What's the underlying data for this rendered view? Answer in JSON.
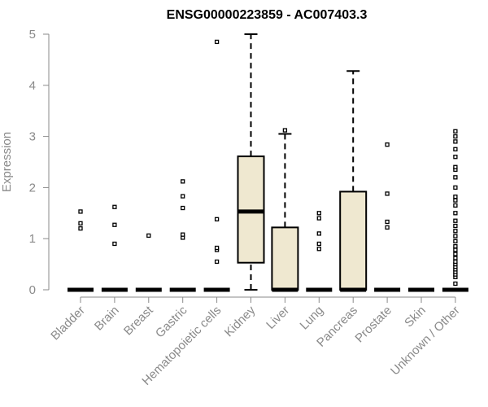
{
  "chart_data": {
    "type": "boxplot",
    "title": "ENSG00000223859 - AC007403.3",
    "xlabel": "",
    "ylabel": "Expression",
    "ylim": [
      0,
      5
    ],
    "yticks": [
      "0",
      "1",
      "2",
      "3",
      "4",
      "5"
    ],
    "box_fill": "#efe8d0",
    "categories": [
      "Bladder",
      "Brain",
      "Breast",
      "Gastric",
      "Hematopoietic cells",
      "Kidney",
      "Liver",
      "Lung",
      "Pancreas",
      "Prostate",
      "Skin",
      "Unknown / Other"
    ],
    "series": [
      {
        "min": 0,
        "q1": 0,
        "median": 0,
        "q3": 0,
        "max": 0,
        "outliers": [
          1.2,
          1.3,
          1.53
        ]
      },
      {
        "min": 0,
        "q1": 0,
        "median": 0,
        "q3": 0,
        "max": 0,
        "outliers": [
          0.9,
          1.27,
          1.62
        ]
      },
      {
        "min": 0,
        "q1": 0,
        "median": 0,
        "q3": 0,
        "max": 0,
        "outliers": [
          1.06
        ]
      },
      {
        "min": 0,
        "q1": 0,
        "median": 0,
        "q3": 0,
        "max": 0,
        "outliers": [
          1.02,
          1.08,
          1.6,
          1.83,
          2.12
        ]
      },
      {
        "min": 0,
        "q1": 0,
        "median": 0,
        "q3": 0,
        "max": 0,
        "outliers": [
          0.55,
          0.78,
          0.82,
          1.38,
          4.85
        ]
      },
      {
        "min": 0,
        "q1": 0.53,
        "median": 1.53,
        "q3": 2.61,
        "max": 5.0,
        "outliers": []
      },
      {
        "min": 0,
        "q1": 0,
        "median": 0,
        "q3": 1.22,
        "max": 3.05,
        "outliers": [
          3.12
        ]
      },
      {
        "min": 0,
        "q1": 0,
        "median": 0,
        "q3": 0,
        "max": 0,
        "outliers": [
          0.8,
          0.9,
          1.1,
          1.4,
          1.5
        ]
      },
      {
        "min": 0,
        "q1": 0,
        "median": 0,
        "q3": 1.92,
        "max": 4.28,
        "outliers": []
      },
      {
        "min": 0,
        "q1": 0,
        "median": 0,
        "q3": 0,
        "max": 0,
        "outliers": [
          1.22,
          1.33,
          1.88,
          2.84
        ]
      },
      {
        "min": 0,
        "q1": 0,
        "median": 0,
        "q3": 0,
        "max": 0,
        "outliers": []
      },
      {
        "min": 0,
        "q1": 0,
        "median": 0,
        "q3": 0,
        "max": 0,
        "outliers": [
          0.12,
          0.25,
          0.3,
          0.35,
          0.4,
          0.45,
          0.5,
          0.55,
          0.62,
          0.7,
          0.78,
          0.85,
          0.95,
          1.05,
          1.15,
          1.25,
          1.35,
          1.5,
          1.65,
          1.75,
          1.82,
          2.0,
          2.2,
          2.35,
          2.4,
          2.6,
          2.75,
          2.9,
          3.0,
          3.1
        ]
      }
    ]
  }
}
